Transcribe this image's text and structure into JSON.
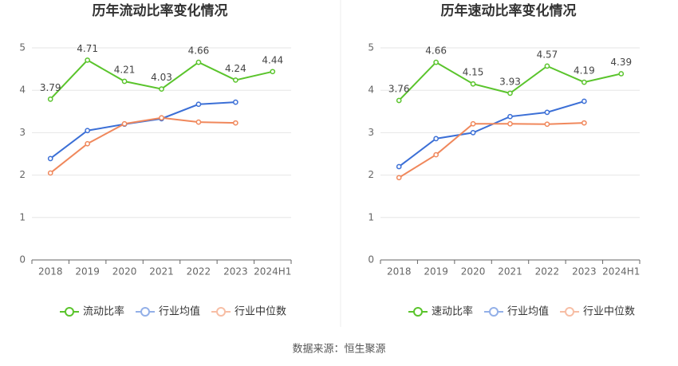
{
  "chart_data": [
    {
      "type": "line",
      "title": "历年流动比率变化情况",
      "categories": [
        "2018",
        "2019",
        "2020",
        "2021",
        "2022",
        "2023",
        "2024H1"
      ],
      "series": [
        {
          "name": "流动比率",
          "color": "#5ac42c",
          "data_labels": true,
          "values": [
            3.79,
            4.71,
            4.21,
            4.03,
            4.66,
            4.24,
            4.44
          ]
        },
        {
          "name": "行业均值",
          "color": "#3b6fd6",
          "data_labels": false,
          "values": [
            2.39,
            3.05,
            3.2,
            3.33,
            3.67,
            3.72,
            null
          ]
        },
        {
          "name": "行业中位数",
          "color": "#f0885c",
          "data_labels": false,
          "values": [
            2.05,
            2.74,
            3.21,
            3.35,
            3.25,
            3.23,
            null
          ]
        }
      ],
      "ylim": [
        0,
        5
      ],
      "yticks": [
        0,
        1,
        2,
        3,
        4,
        5
      ],
      "grid": true,
      "legend": "bottom"
    },
    {
      "type": "line",
      "title": "历年速动比率变化情况",
      "categories": [
        "2018",
        "2019",
        "2020",
        "2021",
        "2022",
        "2023",
        "2024H1"
      ],
      "series": [
        {
          "name": "速动比率",
          "color": "#5ac42c",
          "data_labels": true,
          "values": [
            3.76,
            4.66,
            4.15,
            3.93,
            4.57,
            4.19,
            4.39
          ]
        },
        {
          "name": "行业均值",
          "color": "#3b6fd6",
          "data_labels": false,
          "values": [
            2.2,
            2.86,
            3.0,
            3.38,
            3.48,
            3.74,
            null
          ]
        },
        {
          "name": "行业中位数",
          "color": "#f0885c",
          "data_labels": false,
          "values": [
            1.94,
            2.48,
            3.21,
            3.21,
            3.2,
            3.23,
            null
          ]
        }
      ],
      "ylim": [
        0,
        5
      ],
      "yticks": [
        0,
        1,
        2,
        3,
        4,
        5
      ],
      "grid": true,
      "legend": "bottom"
    }
  ],
  "source": "数据来源：恒生聚源"
}
